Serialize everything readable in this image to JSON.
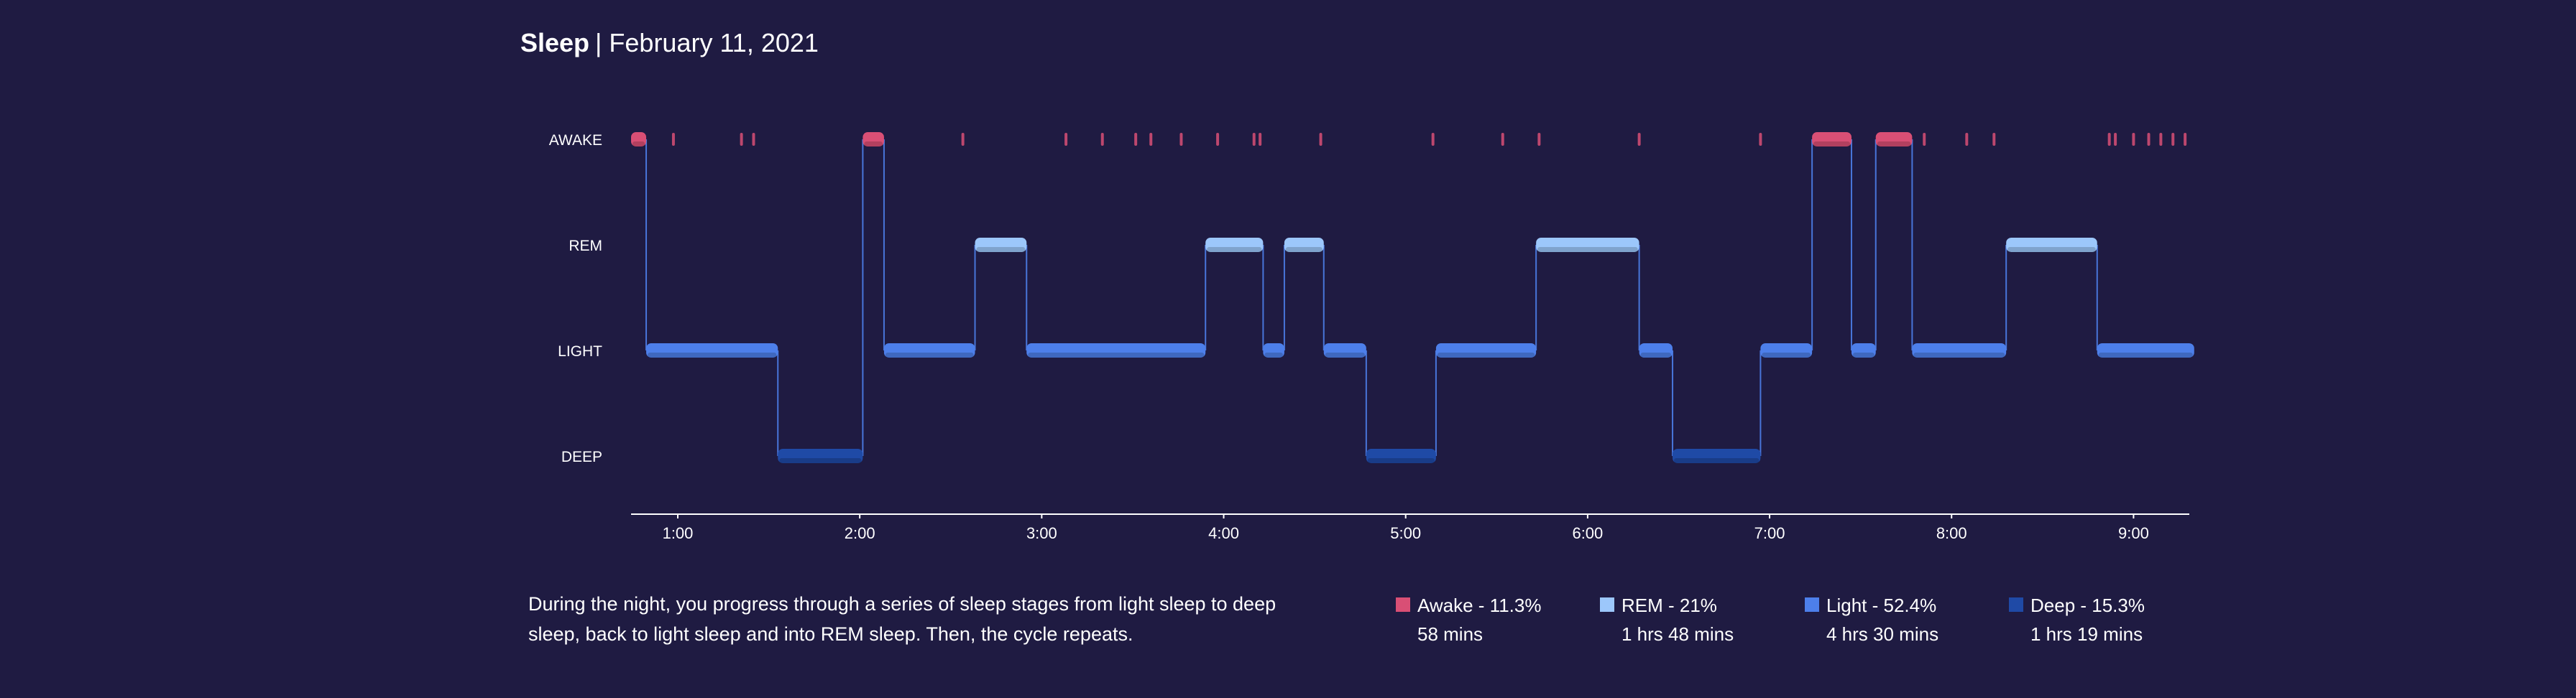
{
  "header": {
    "title": "Sleep",
    "date": "February 11, 2021"
  },
  "description": "During the night, you progress through a series of sleep stages from light sleep to deep sleep, back to light sleep and into REM sleep. Then, the cycle repeats.",
  "colors": {
    "background": "#1f1b42",
    "awake": "#d94f75",
    "rem": "#9cc7fb",
    "light": "#4d7fea",
    "deep": "#1f4aa6",
    "axis": "#ffffff"
  },
  "legend": [
    {
      "key": "awake",
      "label": "Awake - 11.3%",
      "duration": "58 mins"
    },
    {
      "key": "rem",
      "label": "REM - 21%",
      "duration": "1 hrs 48 mins"
    },
    {
      "key": "light",
      "label": "Light - 52.4%",
      "duration": "4 hrs 30 mins"
    },
    {
      "key": "deep",
      "label": "Deep - 15.3%",
      "duration": "1 hrs 19 mins"
    }
  ],
  "chart_data": {
    "type": "step",
    "title": "",
    "xlabel": "",
    "ylabel": "",
    "y_categories": [
      "AWAKE",
      "REM",
      "LIGHT",
      "DEEP"
    ],
    "x_ticks": [
      "1:00",
      "2:00",
      "3:00",
      "4:00",
      "5:00",
      "6:00",
      "7:00",
      "8:00",
      "9:00"
    ],
    "x_range": [
      "0:45",
      "9:20"
    ],
    "segments": [
      {
        "stage": "AWAKE",
        "start": "0:45",
        "end": "0:50"
      },
      {
        "stage": "LIGHT",
        "start": "0:50",
        "end": "1:33"
      },
      {
        "stage": "DEEP",
        "start": "1:33",
        "end": "2:01"
      },
      {
        "stage": "AWAKE",
        "start": "2:01",
        "end": "2:08"
      },
      {
        "stage": "LIGHT",
        "start": "2:08",
        "end": "2:38"
      },
      {
        "stage": "REM",
        "start": "2:38",
        "end": "2:55"
      },
      {
        "stage": "LIGHT",
        "start": "2:55",
        "end": "3:54"
      },
      {
        "stage": "REM",
        "start": "3:54",
        "end": "4:13"
      },
      {
        "stage": "LIGHT",
        "start": "4:13",
        "end": "4:20"
      },
      {
        "stage": "REM",
        "start": "4:20",
        "end": "4:33"
      },
      {
        "stage": "LIGHT",
        "start": "4:33",
        "end": "4:47"
      },
      {
        "stage": "DEEP",
        "start": "4:47",
        "end": "5:10"
      },
      {
        "stage": "LIGHT",
        "start": "5:10",
        "end": "5:43"
      },
      {
        "stage": "REM",
        "start": "5:43",
        "end": "6:17"
      },
      {
        "stage": "LIGHT",
        "start": "6:17",
        "end": "6:28"
      },
      {
        "stage": "DEEP",
        "start": "6:28",
        "end": "6:57"
      },
      {
        "stage": "LIGHT",
        "start": "6:57",
        "end": "7:14"
      },
      {
        "stage": "AWAKE",
        "start": "7:14",
        "end": "7:27"
      },
      {
        "stage": "LIGHT",
        "start": "7:27",
        "end": "7:35"
      },
      {
        "stage": "AWAKE",
        "start": "7:35",
        "end": "7:47"
      },
      {
        "stage": "LIGHT",
        "start": "7:47",
        "end": "8:18"
      },
      {
        "stage": "REM",
        "start": "8:18",
        "end": "8:48"
      },
      {
        "stage": "LIGHT",
        "start": "8:48",
        "end": "9:20"
      }
    ],
    "brief_awakenings": [
      "0:59",
      "1:21",
      "1:25",
      "2:34",
      "3:08",
      "3:20",
      "3:31",
      "3:36",
      "3:46",
      "3:58",
      "4:10",
      "4:12",
      "4:32",
      "5:09",
      "5:32",
      "5:44",
      "6:17",
      "6:57",
      "7:51",
      "8:05",
      "8:14",
      "8:52",
      "8:54",
      "9:00",
      "9:05",
      "9:09",
      "9:13",
      "9:17"
    ],
    "grid": false
  }
}
